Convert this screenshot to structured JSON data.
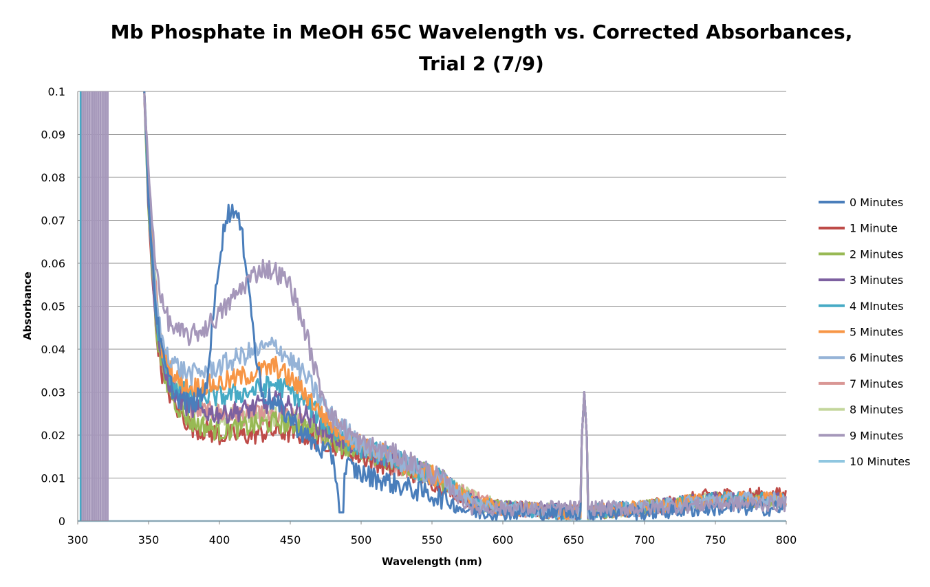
{
  "chart_data": {
    "type": "line",
    "title_lines": [
      "Mb Phosphate in MeOH 65C Wavelength vs. Corrected Absorbances,",
      "Trial 2 (7/9)"
    ],
    "xlabel": "Wavelength (nm)",
    "ylabel": "Absorbance",
    "xlim": [
      300,
      800
    ],
    "ylim": [
      0,
      0.1
    ],
    "x_ticks": [
      "300",
      "350",
      "400",
      "450",
      "500",
      "550",
      "600",
      "650",
      "700",
      "750",
      "800"
    ],
    "y_ticks": [
      "0",
      "0.01",
      "0.02",
      "0.03",
      "0.04",
      "0.05",
      "0.06",
      "0.07",
      "0.08",
      "0.09",
      "0.1"
    ],
    "grid": "horizontal",
    "legend_position": "right",
    "series": [
      {
        "name": "0 Minutes",
        "color": "#4a7ebb",
        "x": [
          347,
          350,
          355,
          360,
          365,
          370,
          380,
          390,
          395,
          400,
          405,
          410,
          415,
          420,
          425,
          430,
          440,
          450,
          460,
          470,
          480,
          485,
          490,
          500,
          520,
          540,
          560,
          570,
          580,
          600,
          650,
          700,
          750,
          800
        ],
        "y": [
          0.1,
          0.075,
          0.05,
          0.038,
          0.032,
          0.029,
          0.027,
          0.03,
          0.045,
          0.062,
          0.071,
          0.073,
          0.068,
          0.058,
          0.04,
          0.03,
          0.027,
          0.024,
          0.02,
          0.017,
          0.015,
          0.005,
          0.013,
          0.011,
          0.009,
          0.007,
          0.005,
          0.003,
          0.002,
          0.002,
          0.002,
          0.002,
          0.003,
          0.003
        ]
      },
      {
        "name": "1 Minute",
        "color": "#be4b48",
        "x": [
          347,
          350,
          355,
          360,
          370,
          380,
          400,
          420,
          440,
          460,
          480,
          500,
          520,
          540,
          560,
          580,
          600,
          650,
          700,
          750,
          800
        ],
        "y": [
          0.1,
          0.072,
          0.045,
          0.033,
          0.026,
          0.022,
          0.02,
          0.02,
          0.021,
          0.02,
          0.018,
          0.015,
          0.013,
          0.011,
          0.008,
          0.004,
          0.003,
          0.002,
          0.003,
          0.006,
          0.006
        ]
      },
      {
        "name": "2 Minutes",
        "color": "#98b954",
        "x": [
          347,
          350,
          355,
          360,
          370,
          380,
          400,
          420,
          440,
          460,
          480,
          500,
          520,
          540,
          560,
          580,
          600,
          650,
          700,
          750,
          800
        ],
        "y": [
          0.1,
          0.072,
          0.046,
          0.034,
          0.027,
          0.023,
          0.021,
          0.022,
          0.023,
          0.022,
          0.019,
          0.016,
          0.014,
          0.012,
          0.009,
          0.004,
          0.003,
          0.002,
          0.003,
          0.005,
          0.005
        ]
      },
      {
        "name": "3 Minutes",
        "color": "#7d60a0",
        "x": [
          347,
          350,
          355,
          360,
          370,
          380,
          400,
          420,
          440,
          460,
          480,
          500,
          520,
          540,
          560,
          580,
          600,
          650,
          700,
          750,
          800
        ],
        "y": [
          0.1,
          0.073,
          0.047,
          0.035,
          0.029,
          0.026,
          0.025,
          0.026,
          0.028,
          0.025,
          0.02,
          0.017,
          0.015,
          0.012,
          0.009,
          0.004,
          0.003,
          0.002,
          0.003,
          0.005,
          0.005
        ]
      },
      {
        "name": "4 MInutes",
        "color": "#46aac5",
        "x": [
          347,
          350,
          355,
          360,
          370,
          380,
          400,
          420,
          440,
          460,
          480,
          500,
          520,
          540,
          560,
          580,
          600,
          650,
          700,
          750,
          800
        ],
        "y": [
          0.1,
          0.074,
          0.048,
          0.037,
          0.031,
          0.029,
          0.029,
          0.03,
          0.032,
          0.028,
          0.021,
          0.017,
          0.015,
          0.012,
          0.009,
          0.004,
          0.003,
          0.002,
          0.003,
          0.005,
          0.005
        ]
      },
      {
        "name": "5 Minutes",
        "color": "#f79646",
        "x": [
          347,
          350,
          355,
          360,
          370,
          380,
          400,
          420,
          440,
          460,
          480,
          500,
          520,
          540,
          560,
          580,
          600,
          650,
          700,
          750,
          800
        ],
        "y": [
          0.1,
          0.075,
          0.05,
          0.039,
          0.033,
          0.031,
          0.032,
          0.034,
          0.036,
          0.03,
          0.022,
          0.018,
          0.015,
          0.012,
          0.009,
          0.004,
          0.003,
          0.002,
          0.003,
          0.005,
          0.005
        ]
      },
      {
        "name": "6 Minutes",
        "color": "#95b3d7",
        "x": [
          347,
          350,
          355,
          360,
          370,
          380,
          400,
          420,
          440,
          460,
          480,
          500,
          520,
          540,
          560,
          580,
          600,
          650,
          700,
          750,
          800
        ],
        "y": [
          0.1,
          0.076,
          0.052,
          0.041,
          0.036,
          0.034,
          0.036,
          0.039,
          0.041,
          0.034,
          0.024,
          0.018,
          0.015,
          0.012,
          0.009,
          0.004,
          0.003,
          0.002,
          0.003,
          0.005,
          0.005
        ]
      },
      {
        "name": "7 Minutes",
        "color": "#d99694",
        "x": [
          347,
          350,
          360,
          380,
          400,
          450,
          500,
          550,
          600,
          650,
          700,
          750,
          800
        ],
        "y": [
          0.1,
          0.075,
          0.035,
          0.026,
          0.025,
          0.024,
          0.016,
          0.01,
          0.003,
          0.002,
          0.003,
          0.005,
          0.005
        ]
      },
      {
        "name": "8 Minutes",
        "color": "#c3d69b",
        "x": [
          347,
          350,
          360,
          380,
          400,
          450,
          500,
          550,
          600,
          650,
          700,
          750,
          800
        ],
        "y": [
          0.1,
          0.075,
          0.035,
          0.026,
          0.025,
          0.024,
          0.016,
          0.01,
          0.003,
          0.002,
          0.003,
          0.005,
          0.005
        ]
      },
      {
        "name": "9 Minutes",
        "color": "#a597ba",
        "x": [
          347,
          350,
          355,
          360,
          365,
          370,
          380,
          390,
          400,
          410,
          420,
          430,
          440,
          450,
          460,
          470,
          480,
          490,
          500,
          520,
          540,
          560,
          570,
          580,
          600,
          650,
          700,
          750,
          800
        ],
        "y": [
          0.1,
          0.08,
          0.06,
          0.05,
          0.046,
          0.044,
          0.043,
          0.045,
          0.048,
          0.052,
          0.056,
          0.059,
          0.058,
          0.055,
          0.045,
          0.032,
          0.024,
          0.021,
          0.018,
          0.016,
          0.013,
          0.009,
          0.005,
          0.003,
          0.003,
          0.003,
          0.003,
          0.004,
          0.004
        ]
      },
      {
        "name": "10 Minutes",
        "color": "#8fc6e0",
        "x": [
          300,
          800
        ],
        "y": [
          0,
          0
        ]
      }
    ],
    "annotations": []
  }
}
